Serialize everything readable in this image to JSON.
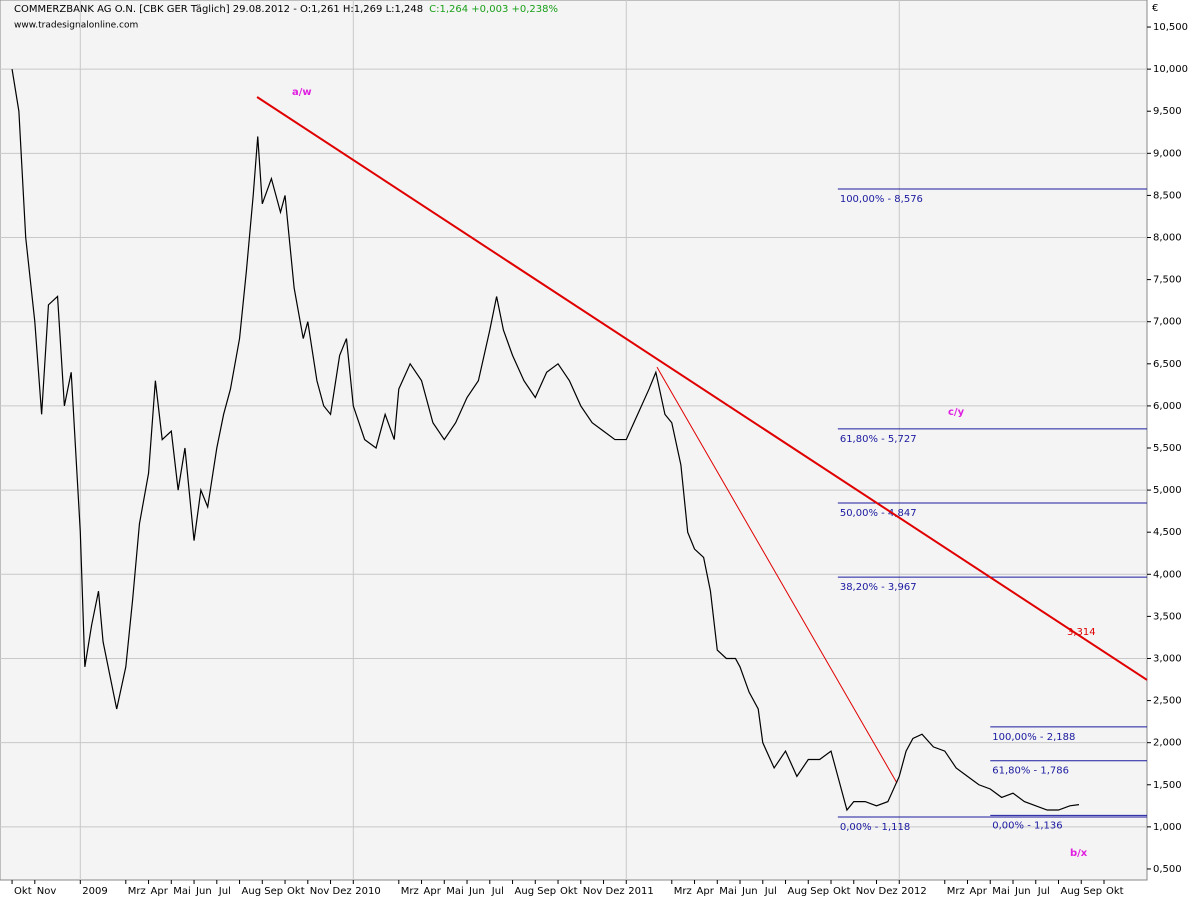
{
  "chart_data": {
    "type": "line",
    "title": "COMMERZBANK AG O.N. [CBK GER  Täglich] 29.08.2012 - O:1,261 H:1,269 L:1,248",
    "title_change": "C:1,264 +0,003 +0,238%",
    "watermark": "www.tradesignalonline.com",
    "y_unit": "€",
    "grid": true,
    "xlim": [
      -0.53,
      49.89
    ],
    "ylim": [
      0.369,
      10.821
    ],
    "xticks": [
      {
        "value": 0,
        "label": "Okt"
      },
      {
        "value": 1,
        "label": "Nov"
      },
      {
        "value": 3,
        "label": "2009"
      },
      {
        "value": 5,
        "label": "Mrz"
      },
      {
        "value": 6,
        "label": "Apr"
      },
      {
        "value": 7,
        "label": "Mai"
      },
      {
        "value": 8,
        "label": "Jun"
      },
      {
        "value": 9,
        "label": "Jul"
      },
      {
        "value": 10,
        "label": "Aug"
      },
      {
        "value": 11,
        "label": "Sep"
      },
      {
        "value": 12,
        "label": "Okt"
      },
      {
        "value": 13,
        "label": "Nov"
      },
      {
        "value": 14,
        "label": "Dez"
      },
      {
        "value": 15,
        "label": "2010"
      },
      {
        "value": 17,
        "label": "Mrz"
      },
      {
        "value": 18,
        "label": "Apr"
      },
      {
        "value": 19,
        "label": "Mai"
      },
      {
        "value": 20,
        "label": "Jun"
      },
      {
        "value": 21,
        "label": "Jul"
      },
      {
        "value": 22,
        "label": "Aug"
      },
      {
        "value": 23,
        "label": "Sep"
      },
      {
        "value": 24,
        "label": "Okt"
      },
      {
        "value": 25,
        "label": "Nov"
      },
      {
        "value": 26,
        "label": "Dez"
      },
      {
        "value": 27,
        "label": "2011"
      },
      {
        "value": 29,
        "label": "Mrz"
      },
      {
        "value": 30,
        "label": "Apr"
      },
      {
        "value": 31,
        "label": "Mai"
      },
      {
        "value": 32,
        "label": "Jun"
      },
      {
        "value": 33,
        "label": "Jul"
      },
      {
        "value": 34,
        "label": "Aug"
      },
      {
        "value": 35,
        "label": "Sep"
      },
      {
        "value": 36,
        "label": "Okt"
      },
      {
        "value": 37,
        "label": "Nov"
      },
      {
        "value": 38,
        "label": "Dez"
      },
      {
        "value": 39,
        "label": "2012"
      },
      {
        "value": 41,
        "label": "Mrz"
      },
      {
        "value": 42,
        "label": "Apr"
      },
      {
        "value": 43,
        "label": "Mai"
      },
      {
        "value": 44,
        "label": "Jun"
      },
      {
        "value": 45,
        "label": "Jul"
      },
      {
        "value": 46,
        "label": "Aug"
      },
      {
        "value": 47,
        "label": "Sep"
      },
      {
        "value": 48,
        "label": "Okt"
      }
    ],
    "yticks": [
      {
        "value": 0.5,
        "label": "0,500"
      },
      {
        "value": 1,
        "label": "1,000"
      },
      {
        "value": 1.5,
        "label": "1,500"
      },
      {
        "value": 2,
        "label": "2,000"
      },
      {
        "value": 2.5,
        "label": "2,500"
      },
      {
        "value": 3,
        "label": "3,000"
      },
      {
        "value": 3.5,
        "label": "3,500"
      },
      {
        "value": 4,
        "label": "4,000"
      },
      {
        "value": 4.5,
        "label": "4,500"
      },
      {
        "value": 5,
        "label": "5,000"
      },
      {
        "value": 5.5,
        "label": "5,500"
      },
      {
        "value": 6,
        "label": "6,000"
      },
      {
        "value": 6.5,
        "label": "6,500"
      },
      {
        "value": 7,
        "label": "7,000"
      },
      {
        "value": 7.5,
        "label": "7,500"
      },
      {
        "value": 8,
        "label": "8,000"
      },
      {
        "value": 8.5,
        "label": "8,500"
      },
      {
        "value": 9,
        "label": "9,000"
      },
      {
        "value": 9.5,
        "label": "9,500"
      },
      {
        "value": 10,
        "label": "10,000"
      },
      {
        "value": 10.5,
        "label": "10,500"
      }
    ],
    "series": [
      {
        "color": "#000000",
        "x": [
          0,
          0.3,
          0.6,
          1,
          1.3,
          1.6,
          2,
          2.3,
          2.6,
          3,
          3.2,
          3.5,
          3.8,
          4,
          4.3,
          4.6,
          5,
          5.3,
          5.6,
          6,
          6.3,
          6.6,
          7,
          7.3,
          7.6,
          8,
          8.3,
          8.6,
          9,
          9.3,
          9.6,
          10,
          10.3,
          10.6,
          10.8,
          11,
          11.4,
          11.8,
          12,
          12.4,
          12.8,
          13,
          13.4,
          13.7,
          14,
          14.4,
          14.7,
          15,
          15.5,
          16,
          16.4,
          16.8,
          17,
          17.5,
          18,
          18.5,
          19,
          19.5,
          20,
          20.5,
          21,
          21.3,
          21.6,
          22,
          22.5,
          23,
          23.5,
          24,
          24.5,
          25,
          25.5,
          26,
          26.5,
          27,
          27.5,
          28,
          28.3,
          28.7,
          29,
          29.4,
          29.7,
          30,
          30.4,
          30.7,
          31,
          31.4,
          31.8,
          32,
          32.4,
          32.8,
          33,
          33.5,
          34,
          34.5,
          35,
          35.5,
          36,
          36.3,
          36.7,
          37,
          37.5,
          38,
          38.5,
          39,
          39.3,
          39.6,
          40,
          40.5,
          41,
          41.5,
          42,
          42.5,
          43,
          43.5,
          44,
          44.5,
          45,
          45.5,
          46,
          46.5,
          46.9
        ],
        "values": [
          10,
          9.5,
          8,
          7,
          5.9,
          7.2,
          7.3,
          6,
          6.4,
          4.5,
          2.9,
          3.4,
          3.8,
          3.2,
          2.8,
          2.4,
          2.9,
          3.7,
          4.6,
          5.2,
          6.3,
          5.6,
          5.7,
          5,
          5.5,
          4.4,
          5,
          4.8,
          5.5,
          5.9,
          6.2,
          6.8,
          7.6,
          8.5,
          9.2,
          8.4,
          8.7,
          8.3,
          8.5,
          7.4,
          6.8,
          7,
          6.3,
          6,
          5.9,
          6.6,
          6.8,
          6,
          5.6,
          5.5,
          5.9,
          5.6,
          6.2,
          6.5,
          6.3,
          5.8,
          5.6,
          5.8,
          6.1,
          6.3,
          6.9,
          7.3,
          6.9,
          6.6,
          6.3,
          6.1,
          6.4,
          6.5,
          6.3,
          6,
          5.8,
          5.7,
          5.6,
          5.6,
          5.9,
          6.2,
          6.4,
          5.9,
          5.8,
          5.3,
          4.5,
          4.3,
          4.2,
          3.8,
          3.1,
          3,
          3,
          2.9,
          2.6,
          2.4,
          2,
          1.7,
          1.9,
          1.6,
          1.8,
          1.8,
          1.9,
          1.6,
          1.2,
          1.3,
          1.3,
          1.25,
          1.3,
          1.6,
          1.9,
          2.05,
          2.1,
          1.95,
          1.9,
          1.7,
          1.6,
          1.5,
          1.45,
          1.35,
          1.4,
          1.3,
          1.25,
          1.2,
          1.2,
          1.25,
          1.264
        ]
      }
    ],
    "trendlines": [
      {
        "color": "#e00000",
        "width": 2,
        "x": [
          10.77,
          49.89
        ],
        "y": [
          9.669,
          2.745
        ]
      },
      {
        "color": "#e00000",
        "width": 1,
        "x": [
          28.35,
          38.9
        ],
        "y": [
          6.46,
          1.52
        ]
      }
    ],
    "levels": [
      {
        "color": "#1a1aa0",
        "x0": 36.3,
        "value": 8.576,
        "label": "100,00% - 8,576"
      },
      {
        "color": "#1a1aa0",
        "x0": 36.3,
        "value": 5.727,
        "label": "61,80% - 5,727"
      },
      {
        "color": "#1a1aa0",
        "x0": 36.3,
        "value": 4.847,
        "label": "50,00% - 4,847"
      },
      {
        "color": "#1a1aa0",
        "x0": 36.3,
        "value": 3.967,
        "label": "38,20% - 3,967"
      },
      {
        "color": "#1a1aa0",
        "x0": 36.3,
        "value": 1.118,
        "label": "0,00% - 1,118"
      },
      {
        "color": "#1a1aa0",
        "x0": 43.0,
        "value": 2.188,
        "label": "100,00% - 2,188"
      },
      {
        "color": "#1a1aa0",
        "x0": 43.0,
        "value": 1.786,
        "label": "61,80% - 1,786"
      },
      {
        "color": "#1a1aa0",
        "x0": 43.0,
        "value": 1.136,
        "label": "0,00% - 1,136"
      }
    ],
    "annotations": [
      "a/w",
      "c/y",
      "b/x"
    ],
    "annotation_color": "#e020e0",
    "trend_label": {
      "value": 3.314,
      "label": "3,314"
    }
  }
}
